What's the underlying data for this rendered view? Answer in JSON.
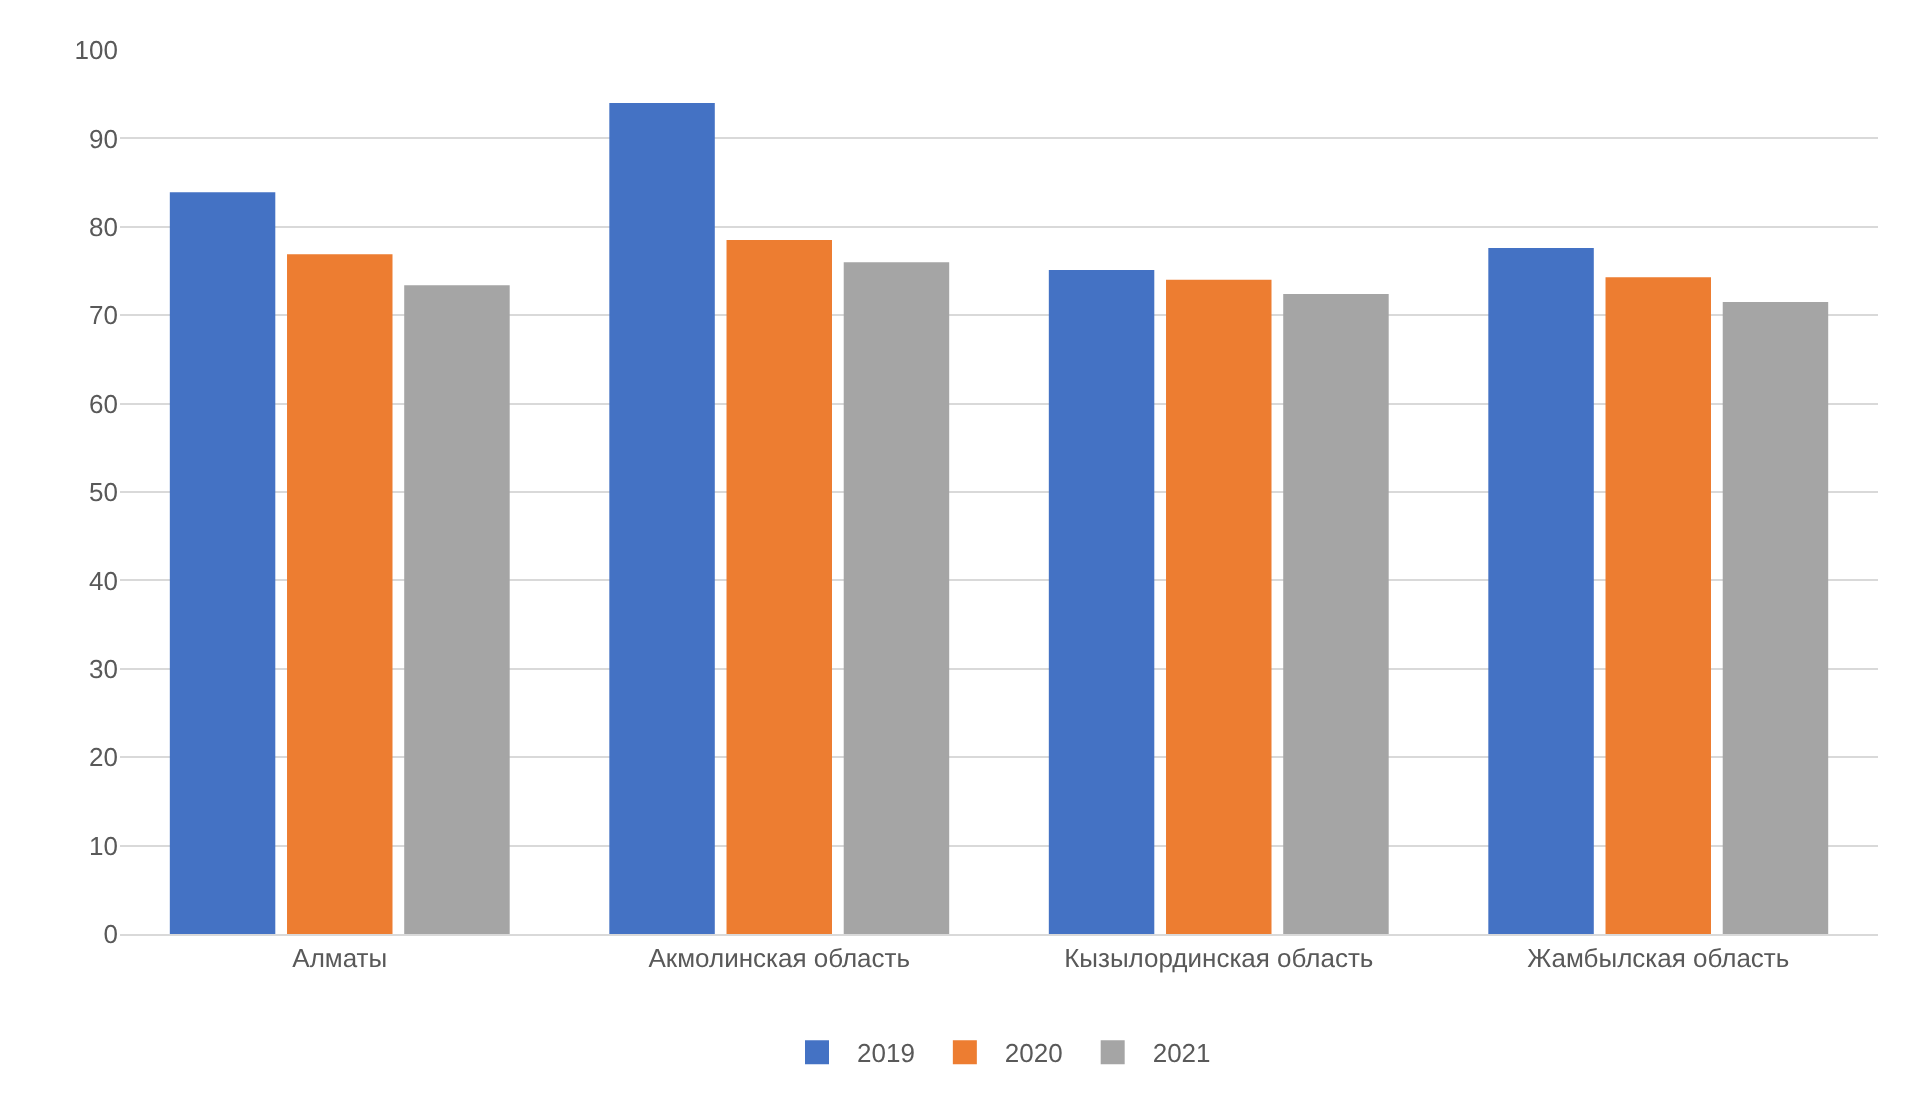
{
  "chart_data": {
    "type": "bar",
    "categories": [
      "Алматы",
      "Акмолинская область",
      "Кызылординская область",
      "Жамбылская область"
    ],
    "series": [
      {
        "name": "2019",
        "color": "#4472c4",
        "values": [
          83.9,
          94.0,
          75.1,
          77.6
        ]
      },
      {
        "name": "2020",
        "color": "#ed7d31",
        "values": [
          76.9,
          78.5,
          74.0,
          74.3
        ]
      },
      {
        "name": "2021",
        "color": "#a5a5a5",
        "values": [
          73.4,
          76.0,
          72.4,
          71.5
        ]
      }
    ],
    "ylim": [
      0,
      100
    ],
    "yticks": [
      0,
      10,
      20,
      30,
      40,
      50,
      60,
      70,
      80,
      90,
      100
    ],
    "grid": "y",
    "legend": "bottom"
  }
}
